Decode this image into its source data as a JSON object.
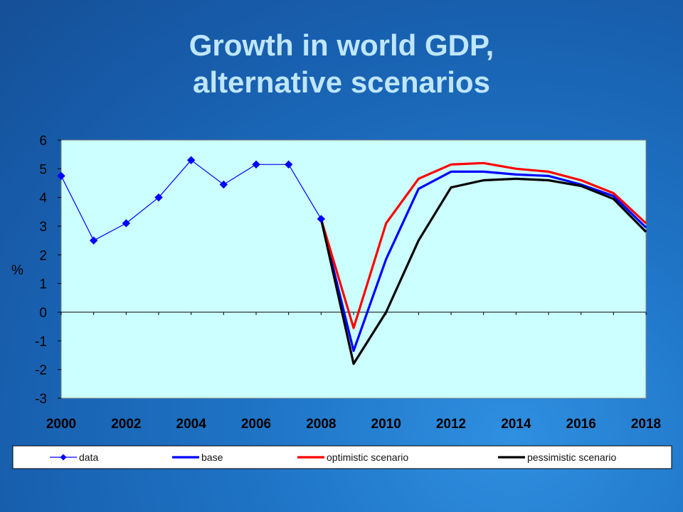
{
  "title_line1": "Growth in world GDP,",
  "title_line2": "alternative scenarios",
  "chart_data": {
    "type": "line",
    "title": "Growth in world GDP, alternative scenarios",
    "xlabel": "",
    "ylabel": "%",
    "xlim": [
      2000,
      2018
    ],
    "ylim": [
      -3,
      6
    ],
    "yticks": [
      "6",
      "5",
      "4",
      "3",
      "2",
      "1",
      "0",
      "-1",
      "-2",
      "-3"
    ],
    "xticks": [
      "2000",
      "2002",
      "2004",
      "2006",
      "2008",
      "2010",
      "2012",
      "2014",
      "2016",
      "2018"
    ],
    "plot_background": "#ccffff",
    "legend_placement": "bottom",
    "series": [
      {
        "name": "data",
        "color": "#0000ff",
        "marker": "diamond",
        "x": [
          2000,
          2001,
          2002,
          2003,
          2004,
          2005,
          2006,
          2007,
          2008
        ],
        "y": [
          4.75,
          2.5,
          3.1,
          4.0,
          5.3,
          4.45,
          5.15,
          5.15,
          3.25
        ]
      },
      {
        "name": "base",
        "color": "#0000ff",
        "marker": "none",
        "x": [
          2008,
          2009,
          2010,
          2011,
          2012,
          2013,
          2014,
          2015,
          2016,
          2017,
          2018
        ],
        "y": [
          3.25,
          -1.35,
          1.85,
          4.3,
          4.9,
          4.9,
          4.8,
          4.75,
          4.45,
          4.05,
          2.95
        ]
      },
      {
        "name": "optimistic scenario",
        "color": "#ff0000",
        "marker": "none",
        "x": [
          2008,
          2009,
          2010,
          2011,
          2012,
          2013,
          2014,
          2015,
          2016,
          2017,
          2018
        ],
        "y": [
          3.25,
          -0.55,
          3.1,
          4.65,
          5.15,
          5.2,
          5.0,
          4.9,
          4.6,
          4.15,
          3.1
        ]
      },
      {
        "name": "pessimistic scenario",
        "color": "#000000",
        "marker": "none",
        "x": [
          2008,
          2009,
          2010,
          2011,
          2012,
          2013,
          2014,
          2015,
          2016,
          2017,
          2018
        ],
        "y": [
          3.25,
          -1.8,
          0.0,
          2.5,
          4.35,
          4.6,
          4.65,
          4.6,
          4.4,
          3.95,
          2.8
        ]
      }
    ]
  }
}
